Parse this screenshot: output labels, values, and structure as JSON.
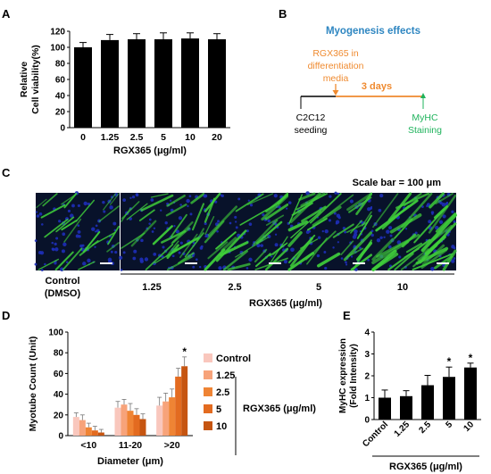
{
  "panel_letters": {
    "a": "A",
    "b": "B",
    "c": "C",
    "d": "D",
    "e": "E"
  },
  "colors": {
    "bar_black": "#000000",
    "schema_title": "#2e86c1",
    "schema_orange": "#ef8a2f",
    "schema_green": "#1fb35c",
    "cell_green": "#3fcf3a",
    "nucleus_blue": "#1e2fb8",
    "d_control": "#f9c7bd",
    "d_1_25": "#f7a37a",
    "d_2_5": "#ef8434",
    "d_5": "#e36b20",
    "d_10": "#c65511"
  },
  "panel_b": {
    "title": "Myogenesis effects",
    "treatment": [
      "RGX365 in",
      "differentiation",
      "media"
    ],
    "duration": "3 days",
    "start": [
      "C2C12",
      "seeding"
    ],
    "end": [
      "MyHC",
      "Staining"
    ]
  },
  "panel_c": {
    "scale_bar": "Scale bar = 100 μm",
    "control_label": [
      "Control",
      "(DMSO)"
    ],
    "conc_labels": [
      "1.25",
      "2.5",
      "5",
      "10"
    ],
    "xlabel": "RGX365 (μg/ml)"
  },
  "panel_d_legend": {
    "entries": [
      "Control",
      "1.25",
      "2.5",
      "5",
      "10"
    ],
    "group_label": "RGX365 (μg/ml)"
  },
  "chart_data": [
    {
      "id": "A",
      "type": "bar",
      "categories": [
        "0",
        "1.25",
        "2.5",
        "5",
        "10",
        "20"
      ],
      "values": [
        100,
        109,
        110,
        110,
        111,
        110
      ],
      "errors": [
        6,
        7,
        7,
        8,
        7,
        7
      ],
      "xlabel": "RGX365 (μg/ml)",
      "ylabel": [
        "Relative",
        "Cell viability(%)"
      ],
      "ylim": [
        0,
        120
      ],
      "yticks": [
        "0",
        "20",
        "40",
        "60",
        "80",
        "100",
        "120"
      ],
      "grid": false
    },
    {
      "id": "D",
      "type": "bar",
      "categories": [
        "<10",
        "11-20",
        ">20"
      ],
      "series": [
        {
          "name": "Control",
          "values": [
            18,
            27,
            29
          ],
          "errors": [
            4,
            6,
            8
          ]
        },
        {
          "name": "1.25",
          "values": [
            15,
            30,
            33
          ],
          "errors": [
            5,
            5,
            8
          ]
        },
        {
          "name": "2.5",
          "values": [
            8,
            24,
            37
          ],
          "errors": [
            4,
            7,
            8
          ]
        },
        {
          "name": "5",
          "values": [
            5,
            20,
            57
          ],
          "errors": [
            4,
            6,
            8
          ]
        },
        {
          "name": "10",
          "values": [
            3,
            16,
            67
          ],
          "errors": [
            3,
            5,
            9
          ]
        }
      ],
      "annotations": [
        {
          "category": ">20",
          "series": "10",
          "text": "*"
        }
      ],
      "xlabel": "Diameter (μm)",
      "ylabel": "Myotube Count (Unit)",
      "ylim": [
        0,
        100
      ],
      "yticks": [
        "0",
        "20",
        "40",
        "60",
        "80",
        "100"
      ],
      "legend": "right"
    },
    {
      "id": "E",
      "type": "bar",
      "categories": [
        "Control",
        "1.25",
        "2.5",
        "5",
        "10"
      ],
      "values": [
        1.0,
        1.07,
        1.57,
        1.95,
        2.38
      ],
      "errors": [
        0.35,
        0.25,
        0.45,
        0.45,
        0.2
      ],
      "annotations": [
        {
          "category": "5",
          "text": "*"
        },
        {
          "category": "10",
          "text": "*"
        }
      ],
      "xlabel": "RGX365 (μg/ml)",
      "ylabel": [
        "MyHC expression",
        "(Fold Intensity)"
      ],
      "ylim": [
        0,
        4
      ],
      "yticks": [
        "0",
        "1",
        "2",
        "3",
        "4"
      ]
    }
  ]
}
